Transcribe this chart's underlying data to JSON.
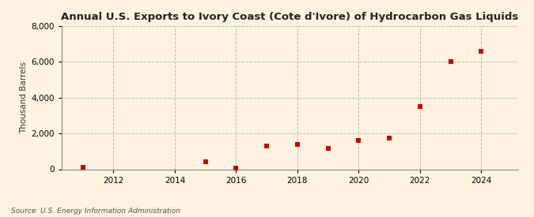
{
  "title": "Annual U.S. Exports to Ivory Coast (Cote d'Ivore) of Hydrocarbon Gas Liquids",
  "ylabel": "Thousand Barrels",
  "source": "Source: U.S. Energy Information Administration",
  "background_color": "#fdf3e0",
  "plot_background_color": "#fdf3e0",
  "marker_color": "#cc0000",
  "marker": "s",
  "marker_size": 4,
  "years": [
    2011,
    2015,
    2016,
    2017,
    2018,
    2019,
    2020,
    2021,
    2022,
    2023,
    2024
  ],
  "values": [
    100,
    400,
    50,
    1300,
    1400,
    1150,
    1600,
    1750,
    3500,
    6000,
    6600
  ],
  "xlim": [
    2010.3,
    2025.2
  ],
  "ylim": [
    0,
    8000
  ],
  "yticks": [
    0,
    2000,
    4000,
    6000,
    8000
  ],
  "xticks": [
    2012,
    2014,
    2016,
    2018,
    2020,
    2022,
    2024
  ],
  "grid_color": "#bbbbbb",
  "grid_style": "--",
  "title_fontsize": 9.5,
  "label_fontsize": 7.5,
  "tick_fontsize": 7.5,
  "source_fontsize": 6.5
}
